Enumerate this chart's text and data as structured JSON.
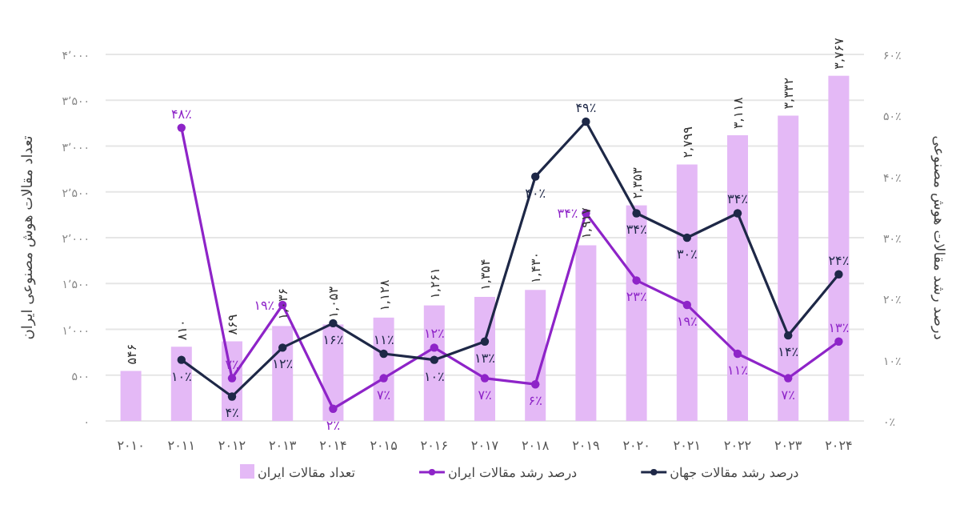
{
  "chart_data": {
    "type": "bar",
    "categories": [
      "۲۰۱۰",
      "۲۰۱۱",
      "۲۰۱۲",
      "۲۰۱۳",
      "۲۰۱۴",
      "۲۰۱۵",
      "۲۰۱۶",
      "۲۰۱۷",
      "۲۰۱۸",
      "۲۰۱۹",
      "۲۰۲۰",
      "۲۰۲۱",
      "۲۰۲۲",
      "۲۰۲۳",
      "۲۰۲۴"
    ],
    "ylabel": "تعداد مقالات هوش مصنوعی ایران",
    "y2label": "درصد رشد مقالات هوش مصنوعی",
    "ylim": [
      0,
      4000
    ],
    "yticks": [
      {
        "value": 0,
        "label": "۰"
      },
      {
        "value": 500,
        "label": "۵۰۰"
      },
      {
        "value": 1000,
        "label": "۱٬۰۰۰"
      },
      {
        "value": 1500,
        "label": "۱٬۵۰۰"
      },
      {
        "value": 2000,
        "label": "۲٬۰۰۰"
      },
      {
        "value": 2500,
        "label": "۲٬۵۰۰"
      },
      {
        "value": 3000,
        "label": "۳٬۰۰۰"
      },
      {
        "value": 3500,
        "label": "۳٬۵۰۰"
      },
      {
        "value": 4000,
        "label": "۴٬۰۰۰"
      }
    ],
    "y2lim": [
      0,
      60
    ],
    "y2ticks": [
      {
        "value": 0,
        "label": "۰٪"
      },
      {
        "value": 10,
        "label": "۱۰٪"
      },
      {
        "value": 20,
        "label": "۲۰٪"
      },
      {
        "value": 30,
        "label": "۳۰٪"
      },
      {
        "value": 40,
        "label": "۴۰٪"
      },
      {
        "value": 50,
        "label": "۵۰٪"
      },
      {
        "value": 60,
        "label": "۶۰٪"
      }
    ],
    "grid": "y",
    "legend": "bottom",
    "marker": "circle",
    "series": [
      {
        "name": "تعداد مقالات ایران",
        "color": "#e4b9f6",
        "values": [
          546,
          810,
          869,
          1036,
          1053,
          1128,
          1261,
          1354,
          1430,
          1917,
          2353,
          2799,
          3118,
          3332,
          3767
        ],
        "value_labels": [
          "۵۴۶",
          "۸۱۰",
          "۸۶۹",
          "۱,۰۳۶",
          "۱,۰۵۳",
          "۱,۱۲۸",
          "۱,۲۶۱",
          "۱,۳۵۴",
          "۱,۴۳۰",
          "۱,۹۱۷",
          "۲,۳۵۳",
          "۲,۷۹۹",
          "۳,۱۱۸",
          "۳,۳۳۲",
          "۳,۷۶۷"
        ]
      },
      {
        "name": "درصد رشد مقالات ایران",
        "type": "line",
        "axis": "y2",
        "color": "#8e24c8",
        "values": [
          null,
          48,
          7,
          19,
          2,
          7,
          12,
          7,
          6,
          34,
          23,
          19,
          11,
          7,
          13
        ],
        "value_labels": [
          null,
          "۴۸٪",
          "۷٪",
          "۱۹٪",
          "۲٪",
          "۷٪",
          "۱۲٪",
          "۷٪",
          "۶٪",
          "۳۴٪",
          "۲۳٪",
          "۱۹٪",
          "۱۱٪",
          "۷٪",
          "۱۳٪"
        ]
      },
      {
        "name": "درصد رشد مقالات جهان",
        "type": "line",
        "axis": "y2",
        "color": "#1e2847",
        "values": [
          null,
          10,
          4,
          12,
          16,
          11,
          10,
          13,
          40,
          49,
          34,
          30,
          34,
          14,
          24
        ],
        "value_labels": [
          null,
          "۱۰٪",
          "۴٪",
          "۱۲٪",
          "۱۶٪",
          "۱۱٪",
          "۱۰٪",
          "۱۳٪",
          "۴۰٪",
          "۴۹٪",
          "۳۴٪",
          "۳۰٪",
          "۳۴٪",
          "۱۴٪",
          "۲۴٪"
        ]
      }
    ]
  }
}
